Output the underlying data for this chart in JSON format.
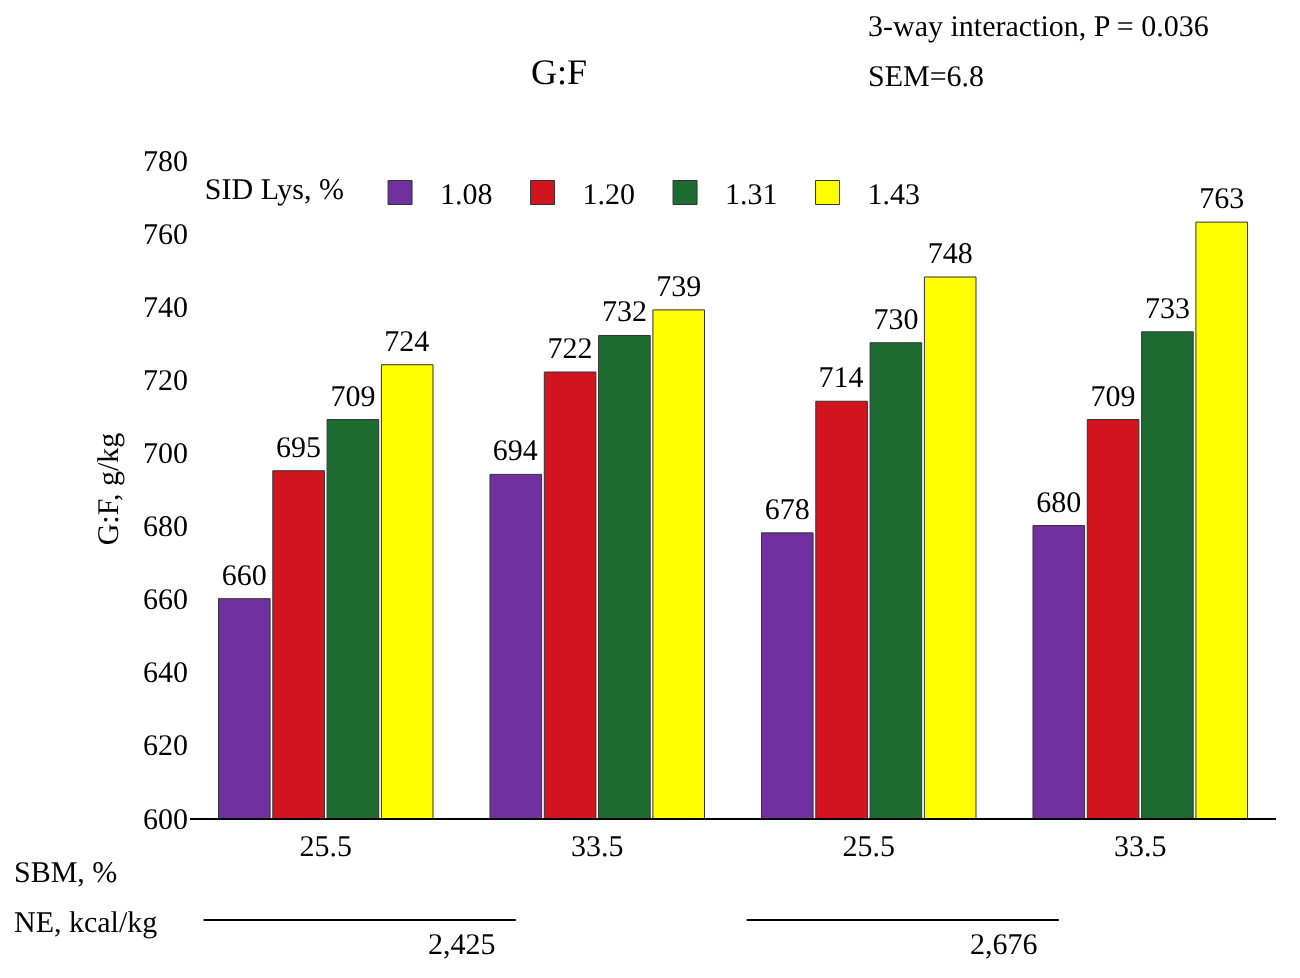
{
  "chart_data": {
    "type": "bar",
    "title": "G:F",
    "ylabel": "G:F, g/kg",
    "xlabel": "SBM, %",
    "legend_title": "SID Lys, %",
    "categories": [
      "25.5",
      "33.5",
      "25.5",
      "33.5"
    ],
    "series": [
      {
        "name": "1.08",
        "color": "#7030a0",
        "values": [
          660,
          694,
          678,
          680
        ]
      },
      {
        "name": "1.20",
        "color": "#d2141e",
        "values": [
          695,
          722,
          714,
          709
        ]
      },
      {
        "name": "1.31",
        "color": "#1e6b32",
        "values": [
          709,
          732,
          730,
          733
        ]
      },
      {
        "name": "1.43",
        "color": "#ffff00",
        "values": [
          724,
          739,
          748,
          763
        ]
      }
    ],
    "ylim": [
      600,
      780
    ],
    "yticks": [
      600,
      620,
      640,
      660,
      680,
      700,
      720,
      740,
      760,
      780
    ],
    "grid": false,
    "legend": "top left",
    "data_labels": true,
    "annotations": [
      "3-way interaction, P = 0.036",
      "SEM=6.8",
      "NE, kcal/kg",
      "2,425",
      "2,676"
    ]
  }
}
